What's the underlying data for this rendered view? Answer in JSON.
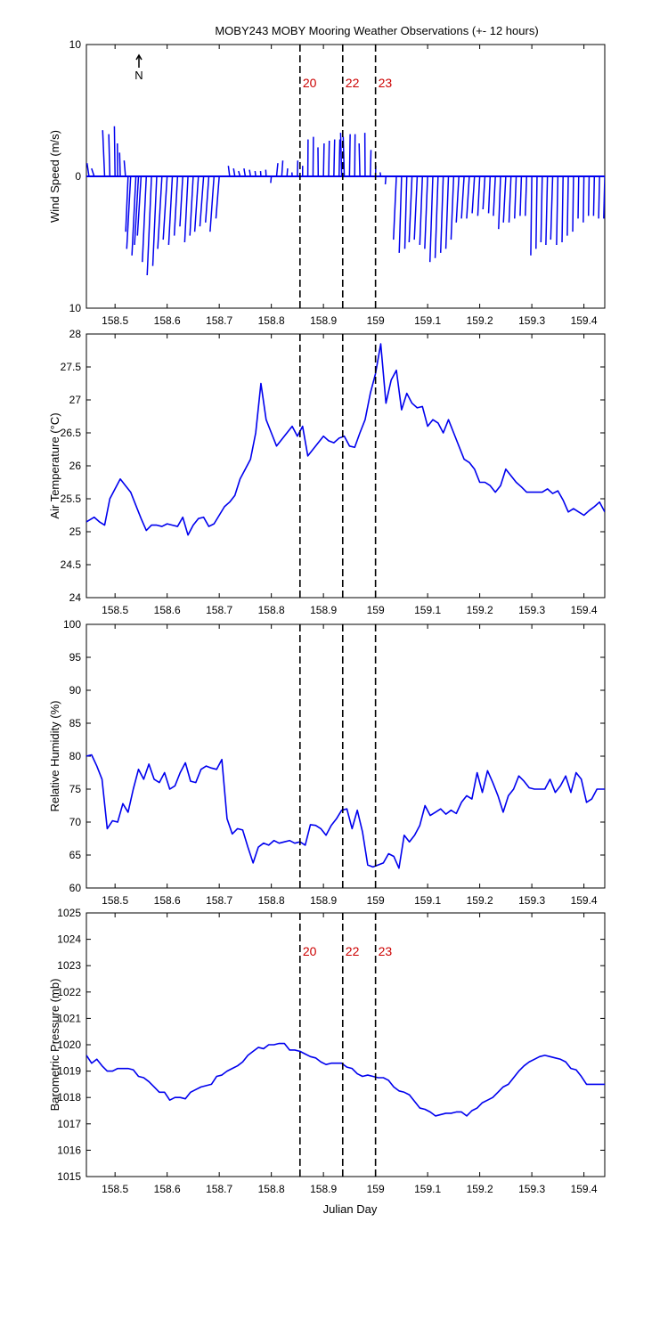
{
  "chart_data": {
    "title": "MOBY243 MOBY Mooring Weather Observations (+- 12 hours)",
    "xlabel": "Julian Day",
    "xlim": [
      158.445,
      159.44
    ],
    "xticks": [
      158.5,
      158.6,
      158.7,
      158.8,
      158.9,
      159,
      159.1,
      159.2,
      159.3,
      159.4
    ],
    "xtick_labels": [
      "158.5",
      "158.6",
      "158.7",
      "158.8",
      "158.9",
      "159",
      "159.1",
      "159.2",
      "159.3",
      "159.4"
    ],
    "series_color": "#0000ee",
    "marker_color": "#cc0000",
    "event_lines": [
      {
        "x": 158.855,
        "label": "20"
      },
      {
        "x": 158.937,
        "label": "22"
      },
      {
        "x": 159.0,
        "label": "23"
      }
    ],
    "panels": [
      {
        "id": "wind",
        "type": "stick",
        "ylabel": "Wind Speed (m/s)",
        "ylim": [
          -10,
          10
        ],
        "yticks": [
          -10,
          0,
          10
        ],
        "ytick_labels": [
          "10",
          "0",
          "10"
        ],
        "north_label": "N",
        "show_event_labels": true,
        "x": [
          158.45,
          158.46,
          158.48,
          158.49,
          158.5,
          158.505,
          158.51,
          158.52,
          158.525,
          158.53,
          158.54,
          158.545,
          158.55,
          158.56,
          158.57,
          158.58,
          158.59,
          158.6,
          158.61,
          158.62,
          158.63,
          158.64,
          158.65,
          158.66,
          158.67,
          158.68,
          158.69,
          158.7,
          158.72,
          158.73,
          158.74,
          158.75,
          158.76,
          158.77,
          158.78,
          158.79,
          158.8,
          158.81,
          158.82,
          158.83,
          158.84,
          158.85,
          158.86,
          158.87,
          158.88,
          158.89,
          158.9,
          158.91,
          158.92,
          158.93,
          158.935,
          158.94,
          158.95,
          158.96,
          158.97,
          158.98,
          158.99,
          159.0,
          159.01,
          159.02,
          159.04,
          159.05,
          159.06,
          159.07,
          159.08,
          159.09,
          159.1,
          159.11,
          159.12,
          159.13,
          159.14,
          159.15,
          159.16,
          159.17,
          159.18,
          159.19,
          159.2,
          159.21,
          159.22,
          159.23,
          159.24,
          159.25,
          159.26,
          159.27,
          159.28,
          159.29,
          159.3,
          159.31,
          159.32,
          159.33,
          159.34,
          159.35,
          159.36,
          159.37,
          159.38,
          159.39,
          159.4,
          159.41,
          159.42,
          159.43,
          159.44
        ],
        "u": [
          -0.15,
          -0.2,
          -0.15,
          -0.08,
          -0.05,
          -0.02,
          -0.05,
          -0.1,
          -0.18,
          -0.3,
          -0.3,
          -0.3,
          -0.28,
          -0.3,
          -0.33,
          -0.3,
          -0.32,
          -0.3,
          -0.28,
          -0.25,
          -0.22,
          -0.25,
          -0.25,
          -0.28,
          -0.28,
          -0.25,
          -0.3,
          -0.25,
          -0.1,
          -0.1,
          -0.12,
          -0.1,
          -0.08,
          -0.05,
          -0.03,
          -0.03,
          -0.05,
          0.1,
          0.08,
          0.05,
          -0.02,
          0.03,
          0.0,
          0.02,
          0.03,
          -0.02,
          0.05,
          0.05,
          0.06,
          0.06,
          -0.08,
          -0.08,
          0.05,
          0.03,
          -0.06,
          -0.02,
          0.05,
          0.02,
          -0.05,
          -0.05,
          -0.22,
          -0.18,
          -0.15,
          -0.22,
          -0.22,
          -0.2,
          -0.22,
          -0.22,
          -0.22,
          -0.2,
          -0.2,
          -0.2,
          -0.2,
          -0.2,
          -0.2,
          -0.18,
          -0.15,
          -0.15,
          -0.12,
          -0.15,
          -0.15,
          -0.18,
          -0.15,
          -0.12,
          -0.1,
          -0.1,
          -0.08,
          -0.08,
          -0.1,
          -0.12,
          -0.15,
          -0.1,
          -0.08,
          -0.08,
          -0.06,
          -0.05,
          -0.05,
          -0.05,
          -0.06,
          -0.07,
          -0.08
        ],
        "v": [
          1.0,
          0.6,
          3.5,
          3.2,
          3.8,
          2.5,
          1.8,
          1.2,
          -4.2,
          -5.5,
          -6.0,
          -5.2,
          -4.5,
          -6.5,
          -7.5,
          -6.8,
          -5.5,
          -4.8,
          -5.2,
          -4.5,
          -3.8,
          -5.0,
          -4.5,
          -4.2,
          -3.8,
          -3.5,
          -4.2,
          -3.2,
          0.8,
          0.6,
          0.4,
          0.6,
          0.5,
          0.4,
          0.4,
          0.5,
          -0.5,
          1.0,
          1.2,
          0.6,
          0.3,
          1.2,
          0.8,
          2.8,
          3.0,
          2.2,
          2.5,
          2.7,
          2.8,
          2.8,
          3.3,
          3.0,
          3.2,
          3.2,
          2.5,
          3.3,
          2.0,
          0.8,
          0.3,
          -0.6,
          -4.8,
          -5.8,
          -5.5,
          -5.0,
          -4.8,
          -5.2,
          -5.5,
          -6.5,
          -6.2,
          -5.8,
          -5.5,
          -4.8,
          -3.5,
          -3.2,
          -3.2,
          -2.8,
          -3.0,
          -2.5,
          -2.8,
          -3.0,
          -4.0,
          -3.5,
          -3.5,
          -3.2,
          -3.0,
          -3.0,
          -6.0,
          -5.5,
          -5.0,
          -5.2,
          -4.8,
          -5.2,
          -5.0,
          -4.5,
          -4.2,
          -3.2,
          -3.5,
          -3.0,
          -3.0,
          -3.2,
          -3.2
        ]
      },
      {
        "id": "air-temp",
        "type": "line",
        "ylabel": "Air Temperature (°C)",
        "ylim": [
          24,
          28
        ],
        "yticks": [
          24,
          24.5,
          25,
          25.5,
          26,
          26.5,
          27,
          27.5,
          28
        ],
        "ytick_labels": [
          "24",
          "24.5",
          "25",
          "25.5",
          "26",
          "26.5",
          "27",
          "27.5",
          "28"
        ],
        "show_event_labels": false,
        "x": [
          158.445,
          158.46,
          158.47,
          158.48,
          158.49,
          158.5,
          158.51,
          158.52,
          158.53,
          158.54,
          158.55,
          158.56,
          158.57,
          158.58,
          158.59,
          158.6,
          158.61,
          158.62,
          158.63,
          158.64,
          158.65,
          158.66,
          158.67,
          158.68,
          158.69,
          158.7,
          158.71,
          158.72,
          158.73,
          158.74,
          158.75,
          158.76,
          158.77,
          158.78,
          158.79,
          158.8,
          158.81,
          158.82,
          158.83,
          158.84,
          158.85,
          158.86,
          158.87,
          158.88,
          158.89,
          158.9,
          158.91,
          158.92,
          158.93,
          158.94,
          158.95,
          158.96,
          158.97,
          158.98,
          158.99,
          159.0,
          159.01,
          159.02,
          159.03,
          159.04,
          159.05,
          159.06,
          159.07,
          159.08,
          159.09,
          159.1,
          159.11,
          159.12,
          159.13,
          159.14,
          159.15,
          159.16,
          159.17,
          159.18,
          159.19,
          159.2,
          159.21,
          159.22,
          159.23,
          159.24,
          159.25,
          159.26,
          159.27,
          159.28,
          159.29,
          159.3,
          159.31,
          159.32,
          159.33,
          159.34,
          159.35,
          159.36,
          159.37,
          159.38,
          159.39,
          159.4,
          159.41,
          159.42,
          159.43,
          159.44
        ],
        "y": [
          25.15,
          25.22,
          25.15,
          25.1,
          25.5,
          25.65,
          25.8,
          25.7,
          25.6,
          25.4,
          25.2,
          25.02,
          25.1,
          25.1,
          25.08,
          25.12,
          25.1,
          25.08,
          25.22,
          24.95,
          25.1,
          25.2,
          25.22,
          25.08,
          25.12,
          25.25,
          25.38,
          25.45,
          25.55,
          25.8,
          25.95,
          26.1,
          26.5,
          27.25,
          26.7,
          26.5,
          26.3,
          26.4,
          26.5,
          26.6,
          26.45,
          26.6,
          26.15,
          26.25,
          26.35,
          26.45,
          26.38,
          26.35,
          26.42,
          26.45,
          26.3,
          26.28,
          26.5,
          26.7,
          27.1,
          27.4,
          27.85,
          26.95,
          27.3,
          27.45,
          26.85,
          27.1,
          26.95,
          26.88,
          26.9,
          26.6,
          26.7,
          26.65,
          26.5,
          26.7,
          26.5,
          26.3,
          26.1,
          26.05,
          25.95,
          25.75,
          25.75,
          25.7,
          25.6,
          25.7,
          25.95,
          25.85,
          25.75,
          25.68,
          25.6,
          25.6,
          25.6,
          25.6,
          25.65,
          25.58,
          25.62,
          25.48,
          25.3,
          25.35,
          25.3,
          25.25,
          25.32,
          25.38,
          25.45,
          25.3
        ],
        "ylabel_is_series": false
      },
      {
        "id": "humidity",
        "type": "line",
        "ylabel": "Relative Humidity (%)",
        "ylim": [
          60,
          100
        ],
        "yticks": [
          60,
          65,
          70,
          75,
          80,
          85,
          90,
          95,
          100
        ],
        "ytick_labels": [
          "60",
          "65",
          "70",
          "75",
          "80",
          "85",
          "90",
          "95",
          "100"
        ],
        "show_event_labels": false,
        "x": [
          158.445,
          158.455,
          158.465,
          158.475,
          158.485,
          158.495,
          158.505,
          158.515,
          158.525,
          158.535,
          158.545,
          158.555,
          158.565,
          158.575,
          158.585,
          158.595,
          158.605,
          158.615,
          158.625,
          158.635,
          158.645,
          158.655,
          158.665,
          158.675,
          158.685,
          158.695,
          158.705,
          158.715,
          158.725,
          158.735,
          158.745,
          158.755,
          158.765,
          158.775,
          158.785,
          158.795,
          158.805,
          158.815,
          158.825,
          158.835,
          158.845,
          158.855,
          158.865,
          158.875,
          158.885,
          158.895,
          158.905,
          158.915,
          158.925,
          158.935,
          158.945,
          158.955,
          158.965,
          158.975,
          158.985,
          158.995,
          159.005,
          159.015,
          159.025,
          159.035,
          159.045,
          159.055,
          159.065,
          159.075,
          159.085,
          159.095,
          159.105,
          159.115,
          159.125,
          159.135,
          159.145,
          159.155,
          159.165,
          159.175,
          159.185,
          159.195,
          159.205,
          159.215,
          159.225,
          159.235,
          159.245,
          159.255,
          159.265,
          159.275,
          159.285,
          159.295,
          159.305,
          159.315,
          159.325,
          159.335,
          159.345,
          159.355,
          159.365,
          159.375,
          159.385,
          159.395,
          159.405,
          159.415,
          159.425,
          159.435,
          159.44
        ],
        "y": [
          80.0,
          80.2,
          78.5,
          76.5,
          69.0,
          70.2,
          70.0,
          72.8,
          71.5,
          75.0,
          78.0,
          76.5,
          78.8,
          76.5,
          76.0,
          77.5,
          75.0,
          75.5,
          77.5,
          79.0,
          76.2,
          76.0,
          78.0,
          78.5,
          78.2,
          78.0,
          79.5,
          70.5,
          68.2,
          69.0,
          68.8,
          66.2,
          63.8,
          66.2,
          66.8,
          66.5,
          67.2,
          66.8,
          67.0,
          67.2,
          66.8,
          67.0,
          66.5,
          69.6,
          69.5,
          69.0,
          68.0,
          69.5,
          70.5,
          71.8,
          72.0,
          69.0,
          71.8,
          68.5,
          63.5,
          63.2,
          63.5,
          63.8,
          65.2,
          64.8,
          63.0,
          68.0,
          67.0,
          68.0,
          69.5,
          72.5,
          71.0,
          71.5,
          72.0,
          71.2,
          71.8,
          71.3,
          73.0,
          74.0,
          73.5,
          77.5,
          74.5,
          77.8,
          76.0,
          74.0,
          71.5,
          74.0,
          75.0,
          77.0,
          76.2,
          75.2,
          75.0,
          75.0,
          75.0,
          76.5,
          74.5,
          75.5,
          77.0,
          74.5,
          77.5,
          76.5,
          73.0,
          73.5,
          75.0,
          75.0,
          75.0
        ]
      },
      {
        "id": "pressure",
        "type": "line",
        "ylabel": "Barometric Pressure (mb)",
        "ylim": [
          1015,
          1025
        ],
        "yticks": [
          1015,
          1016,
          1017,
          1018,
          1019,
          1020,
          1021,
          1022,
          1023,
          1024,
          1025
        ],
        "ytick_labels": [
          "1015",
          "1016",
          "1017",
          "1018",
          "1019",
          "1020",
          "1021",
          "1022",
          "1023",
          "1024",
          "1025"
        ],
        "show_event_labels": true,
        "x": [
          158.445,
          158.455,
          158.465,
          158.475,
          158.485,
          158.495,
          158.505,
          158.515,
          158.525,
          158.535,
          158.545,
          158.555,
          158.565,
          158.575,
          158.585,
          158.595,
          158.605,
          158.615,
          158.625,
          158.635,
          158.645,
          158.655,
          158.665,
          158.675,
          158.685,
          158.695,
          158.705,
          158.715,
          158.725,
          158.735,
          158.745,
          158.755,
          158.765,
          158.775,
          158.785,
          158.795,
          158.805,
          158.815,
          158.825,
          158.835,
          158.845,
          158.855,
          158.865,
          158.875,
          158.885,
          158.895,
          158.905,
          158.915,
          158.925,
          158.935,
          158.945,
          158.955,
          158.965,
          158.975,
          158.985,
          158.995,
          159.005,
          159.015,
          159.025,
          159.035,
          159.045,
          159.055,
          159.065,
          159.075,
          159.085,
          159.095,
          159.105,
          159.115,
          159.125,
          159.135,
          159.145,
          159.155,
          159.165,
          159.175,
          159.185,
          159.195,
          159.205,
          159.215,
          159.225,
          159.235,
          159.245,
          159.255,
          159.265,
          159.275,
          159.285,
          159.295,
          159.305,
          159.315,
          159.325,
          159.335,
          159.345,
          159.355,
          159.365,
          159.375,
          159.385,
          159.395,
          159.405,
          159.415,
          159.425,
          159.435,
          159.44
        ],
        "y": [
          1019.6,
          1019.3,
          1019.45,
          1019.2,
          1019.0,
          1019.0,
          1019.1,
          1019.1,
          1019.1,
          1019.05,
          1018.8,
          1018.75,
          1018.6,
          1018.4,
          1018.2,
          1018.2,
          1017.9,
          1018.0,
          1018.0,
          1017.95,
          1018.2,
          1018.3,
          1018.4,
          1018.45,
          1018.5,
          1018.8,
          1018.85,
          1019.0,
          1019.1,
          1019.2,
          1019.35,
          1019.6,
          1019.75,
          1019.9,
          1019.85,
          1020.0,
          1020.0,
          1020.05,
          1020.05,
          1019.8,
          1019.8,
          1019.75,
          1019.65,
          1019.55,
          1019.5,
          1019.35,
          1019.25,
          1019.3,
          1019.3,
          1019.3,
          1019.15,
          1019.1,
          1018.9,
          1018.8,
          1018.85,
          1018.8,
          1018.75,
          1018.75,
          1018.65,
          1018.4,
          1018.25,
          1018.2,
          1018.1,
          1017.85,
          1017.6,
          1017.55,
          1017.45,
          1017.3,
          1017.35,
          1017.4,
          1017.4,
          1017.45,
          1017.45,
          1017.3,
          1017.5,
          1017.6,
          1017.8,
          1017.9,
          1018.0,
          1018.2,
          1018.4,
          1018.5,
          1018.75,
          1019.0,
          1019.2,
          1019.35,
          1019.45,
          1019.55,
          1019.6,
          1019.55,
          1019.5,
          1019.45,
          1019.35,
          1019.1,
          1019.05,
          1018.8,
          1018.5,
          1018.5,
          1018.5,
          1018.5,
          1018.5
        ]
      }
    ]
  }
}
